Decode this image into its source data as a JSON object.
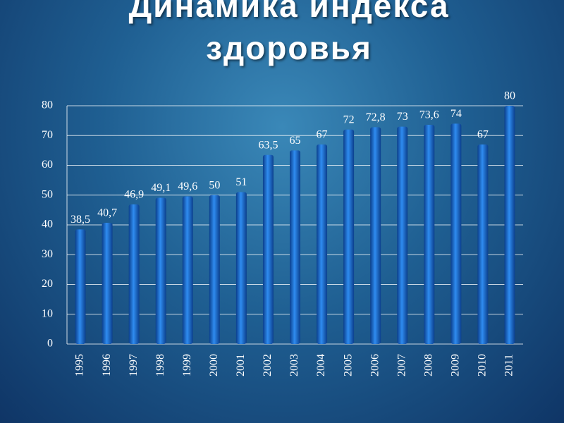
{
  "chart_data": {
    "type": "bar",
    "title": "Динамика индекса здоровья",
    "categories": [
      "1995",
      "1996",
      "1997",
      "1998",
      "1999",
      "2000",
      "2001",
      "2002",
      "2003",
      "2004",
      "2005",
      "2006",
      "2007",
      "2008",
      "2009",
      "2010",
      "2011"
    ],
    "values": [
      38.5,
      40.7,
      46.9,
      49.1,
      49.6,
      50,
      51,
      63.5,
      65,
      67,
      72,
      72.8,
      73,
      73.6,
      74,
      67,
      80
    ],
    "value_labels": [
      "38,5",
      "40,7",
      "46,9",
      "49,1",
      "49,6",
      "50",
      "51",
      "63,5",
      "65",
      "67",
      "72",
      "72,8",
      "73",
      "73,6",
      "74",
      "67",
      "80"
    ],
    "color": "#1a6fd8",
    "ylim": [
      0,
      80
    ],
    "yticks": [
      0,
      10,
      20,
      30,
      40,
      50,
      60,
      70,
      80
    ],
    "grid": true
  }
}
